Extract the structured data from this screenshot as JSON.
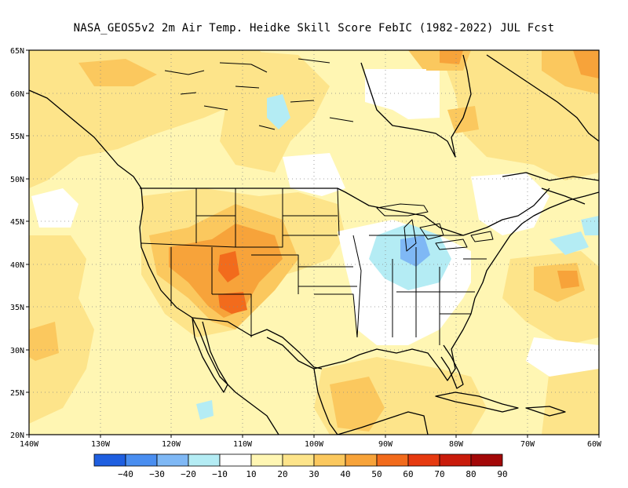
{
  "title": "NASA_GEOS5v2  2m Air Temp. Heidke Skill Score FebIC (1982-2022) JUL Fcst",
  "lat_labels": [
    "65N",
    "60N",
    "55N",
    "50N",
    "45N",
    "40N",
    "35N",
    "30N",
    "25N",
    "20N"
  ],
  "lon_labels": [
    "140W",
    "130W",
    "120W",
    "110W",
    "100W",
    "90W",
    "80W",
    "70W",
    "60W"
  ],
  "colorbar": {
    "labels": [
      "−40",
      "−30",
      "−20",
      "−10",
      "10",
      "20",
      "30",
      "40",
      "50",
      "60",
      "70",
      "80",
      "90"
    ],
    "colors": [
      "#1f5fe0",
      "#4a8ef0",
      "#7fb8f5",
      "#b4ecf4",
      "#ffffff",
      "#fff6b3",
      "#fde48a",
      "#fbc85e",
      "#f7a33a",
      "#f26b1c",
      "#e63a10",
      "#c91b0b",
      "#a30808"
    ]
  }
}
